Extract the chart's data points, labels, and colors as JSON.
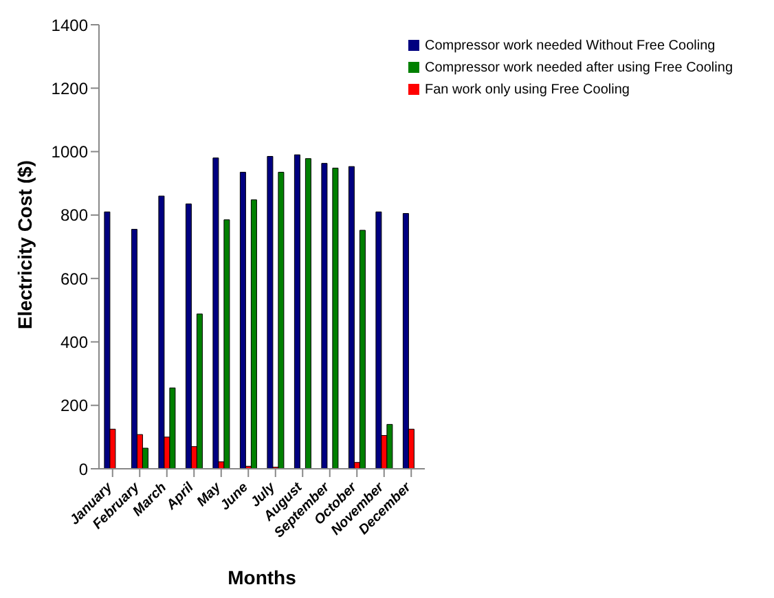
{
  "chart_data": {
    "type": "bar",
    "xlabel": "Months",
    "ylabel": "Electricity Cost ($)",
    "categories": [
      "January",
      "February",
      "March",
      "April",
      "May",
      "June",
      "July",
      "August",
      "September",
      "October",
      "November",
      "December"
    ],
    "series": [
      {
        "name": "Compressor work needed Without Free Cooling",
        "color": "#000080",
        "values": [
          810,
          755,
          860,
          835,
          980,
          935,
          985,
          990,
          963,
          953,
          810,
          805
        ]
      },
      {
        "name": "Fan work only using Free Cooling",
        "color": "#ff0000",
        "values": [
          125,
          108,
          100,
          70,
          22,
          8,
          5,
          0,
          0,
          20,
          105,
          125
        ]
      },
      {
        "name": "Compressor work needed after using Free Cooling",
        "color": "#008000",
        "values": [
          0,
          65,
          255,
          488,
          785,
          848,
          935,
          978,
          948,
          752,
          140,
          0
        ]
      }
    ],
    "ylim": [
      0,
      1400
    ],
    "yticks": [
      0,
      200,
      400,
      600,
      800,
      1000,
      1200,
      1400
    ],
    "grid": false,
    "legend": "top right"
  }
}
